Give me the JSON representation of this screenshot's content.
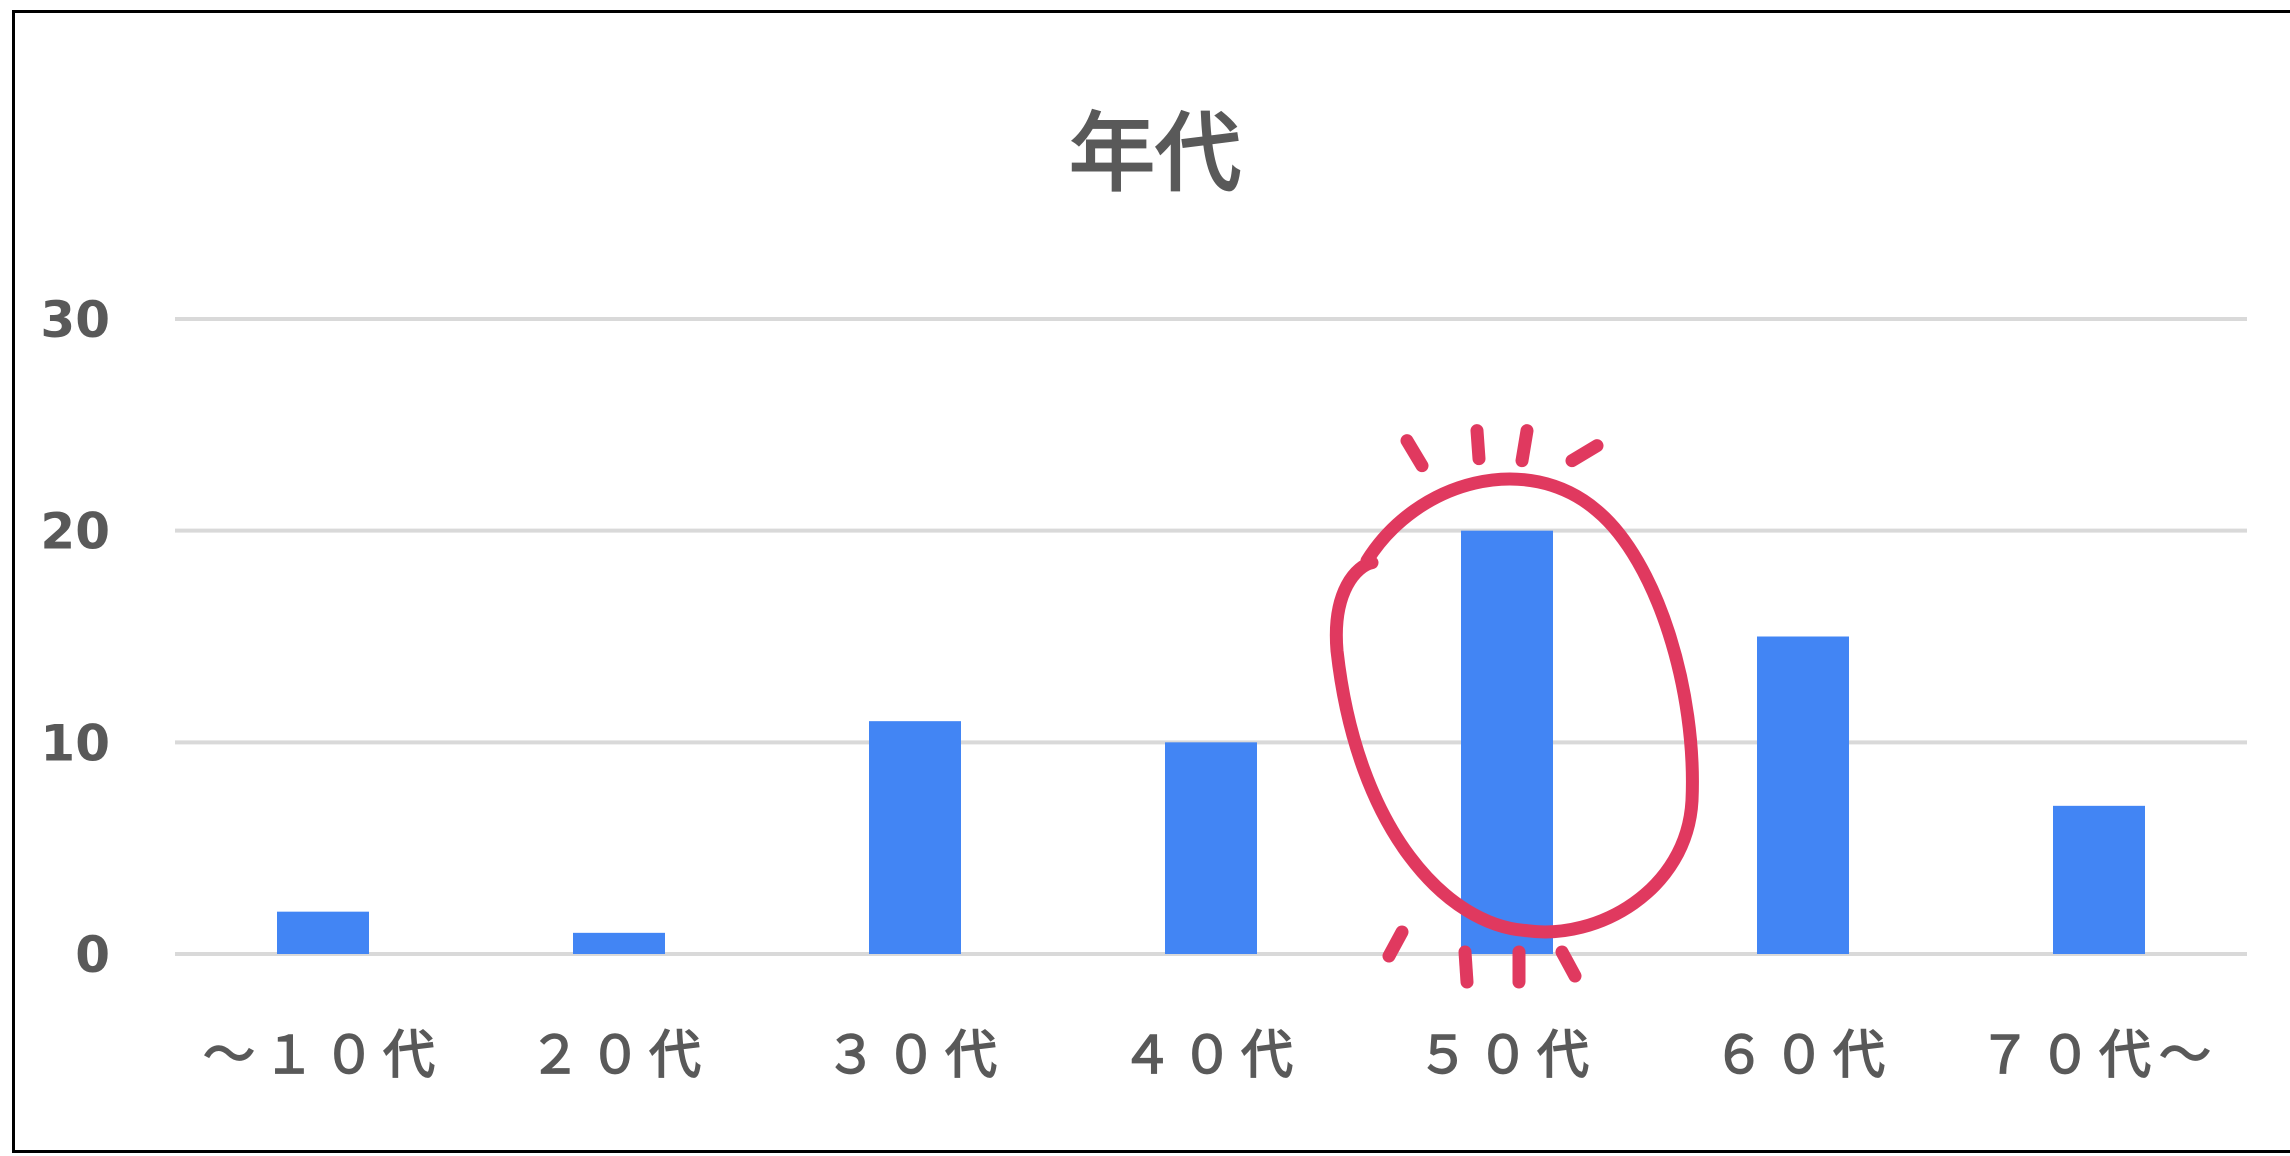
{
  "chart_data": {
    "type": "bar",
    "title": "年代",
    "xlabel": "",
    "ylabel": "",
    "categories": [
      "～１０代",
      "２０代",
      "３０代",
      "４０代",
      "５０代",
      "６０代",
      "７０代～"
    ],
    "values": [
      2,
      1,
      11,
      10,
      20,
      15,
      7
    ],
    "ylim": [
      0,
      30
    ],
    "yticks": [
      0,
      10,
      20,
      30
    ],
    "grid": true,
    "legend": "none",
    "bar_color": "#4285F4",
    "grid_color": "#d9d9d9",
    "text_color": "#595959",
    "highlight": {
      "category": "５０代",
      "color": "#E0395F",
      "shape": "hand-drawn circle with emphasis marks"
    }
  }
}
